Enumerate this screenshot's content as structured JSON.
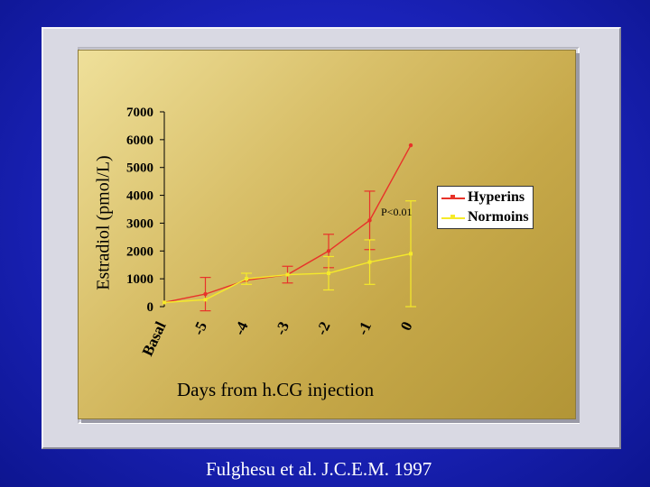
{
  "colors": {
    "background": "#1a22b8",
    "panel": "#d4b95e",
    "hyperins": "#e8322a",
    "normoins": "#f5ea2a"
  },
  "citation": "Fulghesu et al. J.C.E.M. 1997",
  "annotation": "P<0.01",
  "chart_data": {
    "type": "line",
    "title": "",
    "xlabel": "Days from h.CG injection",
    "ylabel": "Estradiol (pmol/L)",
    "categories": [
      "Basal",
      "-5",
      "-4",
      "-3",
      "-2",
      "-1",
      "0"
    ],
    "ylim": [
      0,
      7000
    ],
    "yticks": [
      "0",
      "1000",
      "2000",
      "3000",
      "4000",
      "5000",
      "6000",
      "7000"
    ],
    "grid": false,
    "legend_position": "right",
    "series": [
      {
        "name": "Hyperins",
        "color": "#e8322a",
        "values": [
          150,
          450,
          950,
          1150,
          2000,
          3100,
          5800
        ],
        "error": [
          0,
          600,
          0,
          300,
          600,
          1050,
          0
        ]
      },
      {
        "name": "Normoins",
        "color": "#f5ea2a",
        "values": [
          150,
          250,
          1000,
          1150,
          1200,
          1600,
          1900
        ],
        "error": [
          0,
          0,
          200,
          0,
          600,
          800,
          1900
        ]
      }
    ]
  }
}
